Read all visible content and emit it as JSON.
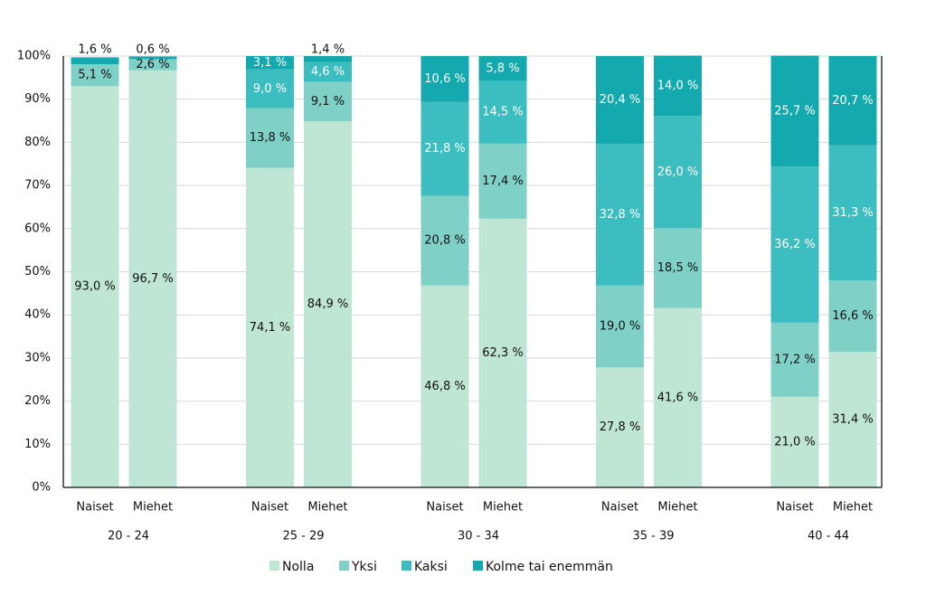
{
  "chart_data": {
    "type": "stacked_bar",
    "categories": [
      "Naiset",
      "Miehet",
      "Naiset",
      "Miehet",
      "Naiset",
      "Miehet",
      "Naiset",
      "Miehet",
      "Naiset",
      "Miehet"
    ],
    "groups": [
      "20 - 24",
      "25 - 29",
      "30 - 34",
      "35 - 39",
      "40 - 44"
    ],
    "series": [
      {
        "name": "Nolla",
        "color": "#bfe6d4",
        "values": [
          93.0,
          96.7,
          74.1,
          84.9,
          46.8,
          62.3,
          27.8,
          41.6,
          21.0,
          31.4
        ],
        "value_labels": [
          "93,0 %",
          "96,7 %",
          "74,1 %",
          "84,9 %",
          "46,8 %",
          "62,3 %",
          "27,8 %",
          "41,6 %",
          "21,0 %",
          "31,4 %"
        ]
      },
      {
        "name": "Yksi",
        "color": "#7fd0c7",
        "values": [
          5.1,
          2.6,
          13.8,
          9.1,
          20.8,
          17.4,
          19.0,
          18.5,
          17.2,
          16.6
        ],
        "value_labels": [
          "5,1 %",
          "2,6 %",
          "13,8 %",
          "9,1 %",
          "20,8 %",
          "17,4 %",
          "19,0 %",
          "18,5 %",
          "17,2 %",
          "16,6 %"
        ]
      },
      {
        "name": "Kaksi",
        "color": "#3cbdc0",
        "values": [
          null,
          null,
          9.0,
          4.6,
          21.8,
          14.5,
          32.8,
          26.0,
          36.2,
          31.3
        ],
        "value_labels": [
          null,
          null,
          "9,0 %",
          "4,6 %",
          "21,8 %",
          "14,5 %",
          "32,8 %",
          "26,0 %",
          "36,2 %",
          "31,3 %"
        ]
      },
      {
        "name": "Kolme tai enemmän",
        "color": "#14a9ae",
        "values": [
          1.6,
          0.6,
          3.1,
          1.4,
          10.6,
          5.8,
          20.4,
          14.0,
          25.7,
          20.7
        ],
        "value_labels": [
          "1,6 %",
          "0,6 %",
          "3,1 %",
          "1,4 %",
          "10,6 %",
          "5,8 %",
          "20,4 %",
          "14,0 %",
          "25,7 %",
          "20,7 %"
        ]
      }
    ],
    "ylim": [
      0,
      100
    ],
    "yticks": [
      {
        "value": 0,
        "label": "0%"
      },
      {
        "value": 10,
        "label": "10%"
      },
      {
        "value": 20,
        "label": "20%"
      },
      {
        "value": 30,
        "label": "30%"
      },
      {
        "value": 40,
        "label": "40%"
      },
      {
        "value": 50,
        "label": "50%"
      },
      {
        "value": 60,
        "label": "60%"
      },
      {
        "value": 70,
        "label": "70%"
      },
      {
        "value": 80,
        "label": "80%"
      },
      {
        "value": 90,
        "label": "90%"
      },
      {
        "value": 100,
        "label": "100%"
      }
    ],
    "grid": true
  }
}
